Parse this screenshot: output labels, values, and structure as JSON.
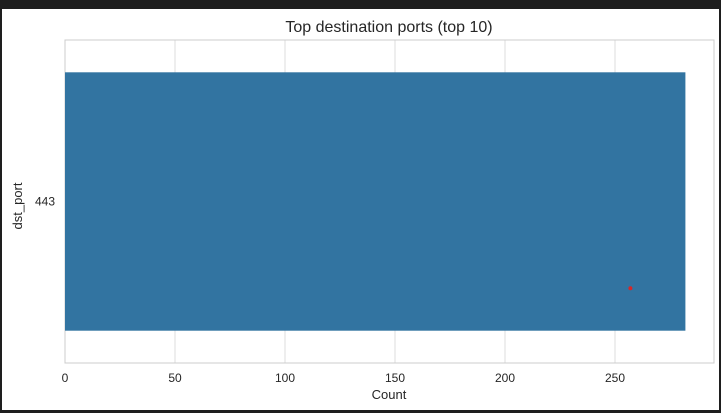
{
  "chart_data": {
    "type": "bar",
    "orientation": "horizontal",
    "title": "Top destination ports (top 10)",
    "xlabel": "Count",
    "ylabel": "dst_port",
    "categories": [
      "443"
    ],
    "values": [
      282
    ],
    "xlim": [
      0,
      295
    ],
    "xticks": [
      0,
      50,
      100,
      150,
      200,
      250
    ],
    "grid": true,
    "bar_color": "#3274a1",
    "grid_color": "#dcdcdc",
    "marker_color": "#d62728",
    "marker_point": {
      "x": 257,
      "category": "443"
    }
  }
}
